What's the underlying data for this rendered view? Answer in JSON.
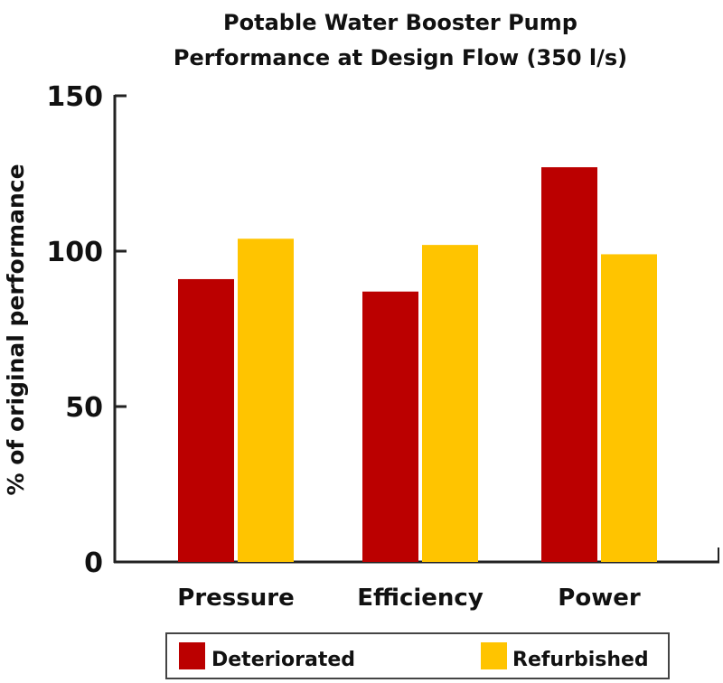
{
  "chart_data": {
    "type": "bar",
    "title": [
      "Potable Water Booster Pump",
      "Performance at Design Flow (350 l/s)"
    ],
    "xlabel": "",
    "ylabel": "% of original performance",
    "ylim": [
      0,
      150
    ],
    "yticks": [
      "0",
      "50",
      "100",
      "150"
    ],
    "ytick_values": [
      0,
      50,
      100,
      150
    ],
    "categories": [
      "Pressure",
      "Efficiency",
      "Power"
    ],
    "series": [
      {
        "name": "Deteriorated",
        "color": "#bb0000",
        "values": [
          91,
          87,
          127
        ]
      },
      {
        "name": "Refurbished",
        "color": "#ffc400",
        "values": [
          104,
          102,
          99
        ]
      }
    ],
    "grid": false,
    "legend_position": "bottom"
  }
}
